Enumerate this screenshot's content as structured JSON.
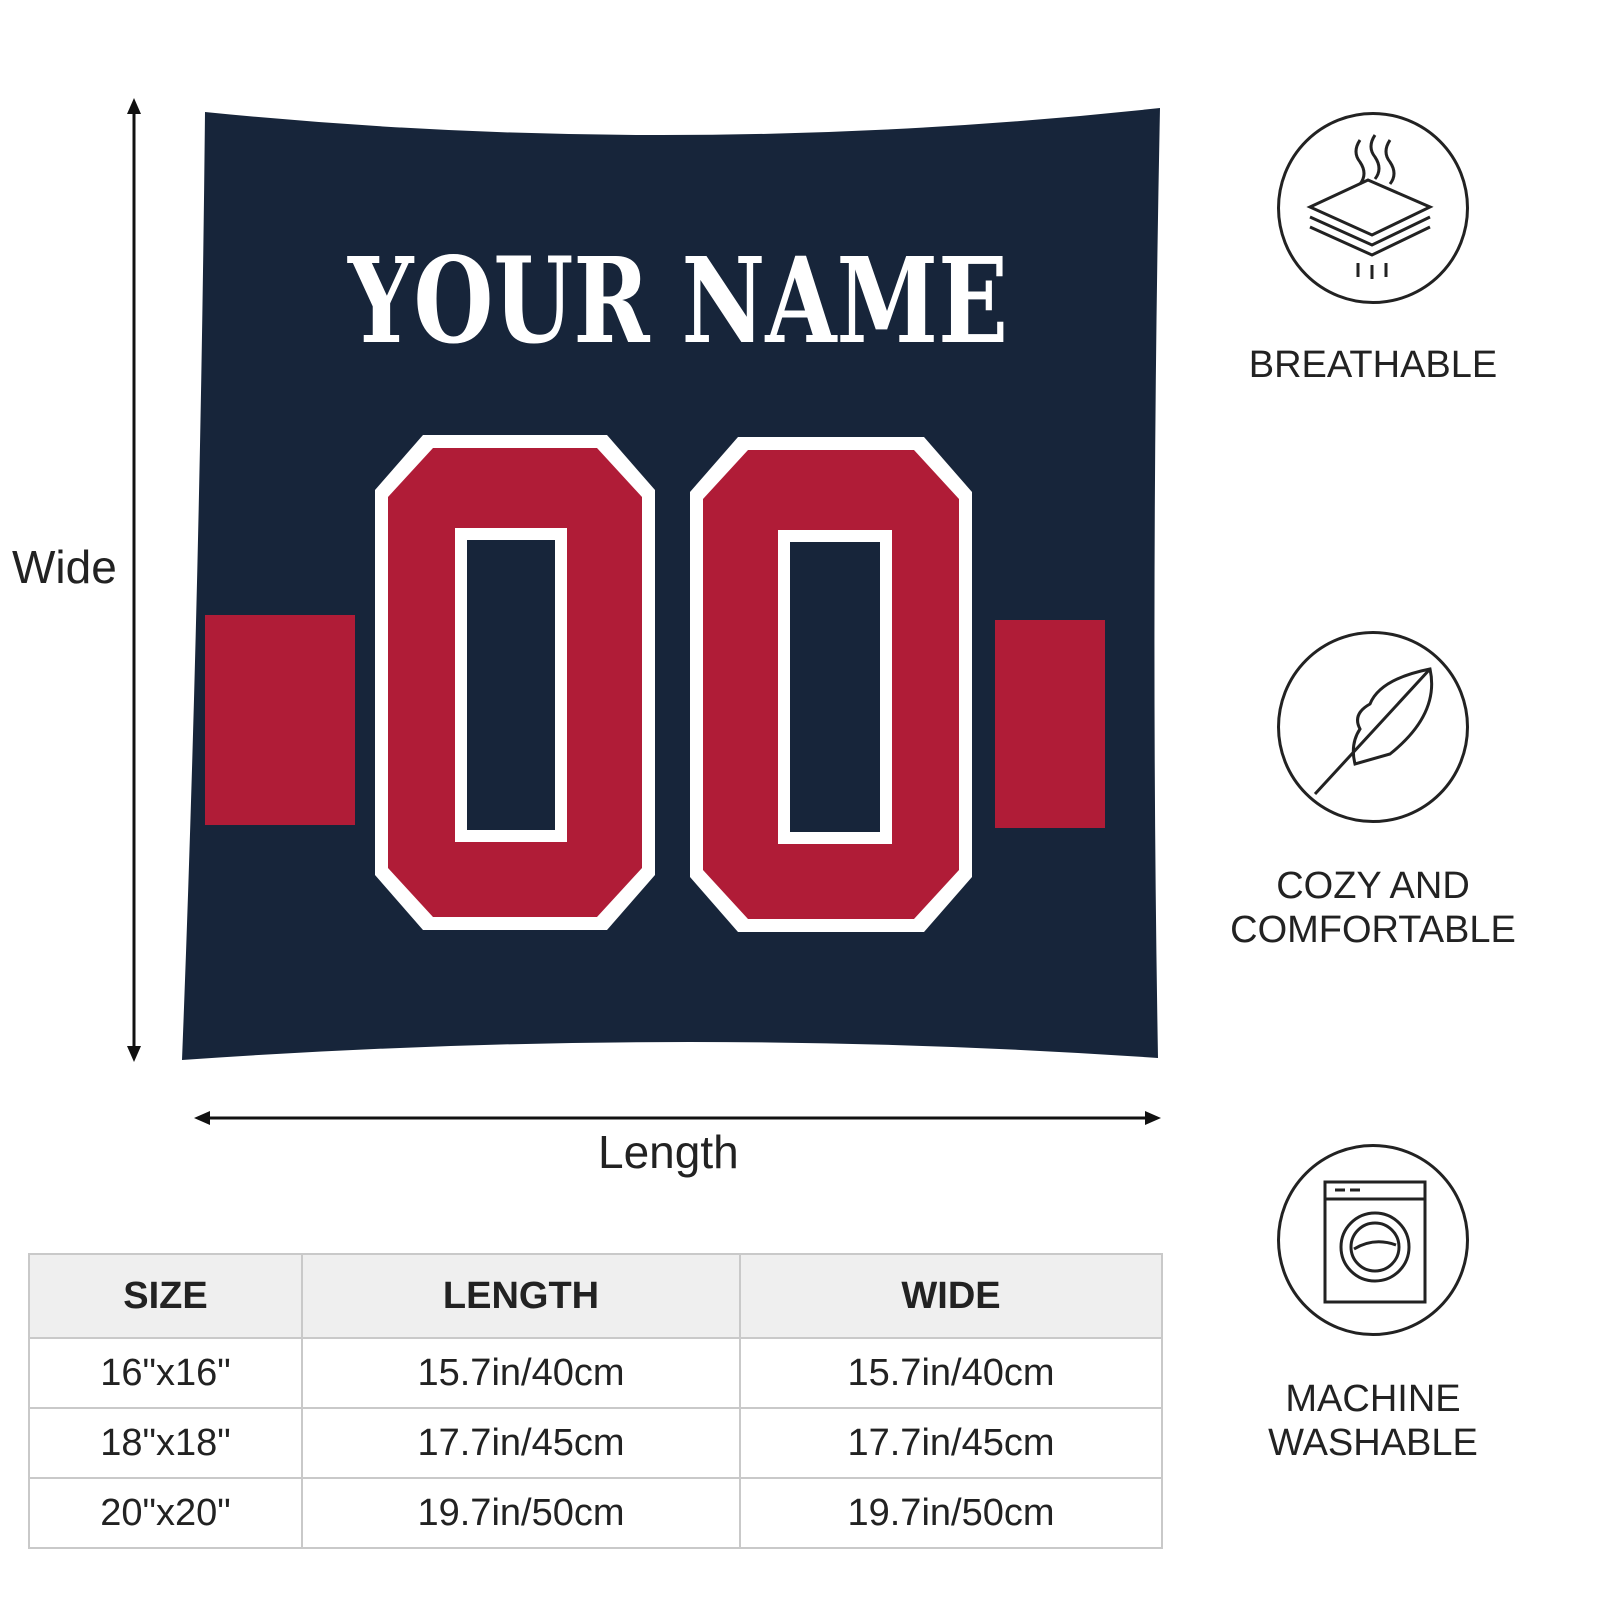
{
  "pillow": {
    "name_text": "YOUR NAME",
    "number_text": "00",
    "colors": {
      "navy": "#17253a",
      "red": "#b01c37",
      "white": "#ffffff"
    }
  },
  "dimensions": {
    "wide_label": "Wide",
    "length_label": "Length"
  },
  "features": [
    {
      "icon": "breathable-layers-icon",
      "label": "BREATHABLE"
    },
    {
      "icon": "feather-icon",
      "label_line1": "COZY AND",
      "label_line2": "COMFORTABLE"
    },
    {
      "icon": "washing-machine-icon",
      "label_line1": "MACHINE",
      "label_line2": "WASHABLE"
    }
  ],
  "size_table": {
    "headers": [
      "SIZE",
      "LENGTH",
      "WIDE"
    ],
    "rows": [
      [
        "16\"x16\"",
        "15.7in/40cm",
        "15.7in/40cm"
      ],
      [
        "18\"x18\"",
        "17.7in/45cm",
        "17.7in/45cm"
      ],
      [
        "20\"x20\"",
        "19.7in/50cm",
        "19.7in/50cm"
      ]
    ]
  }
}
